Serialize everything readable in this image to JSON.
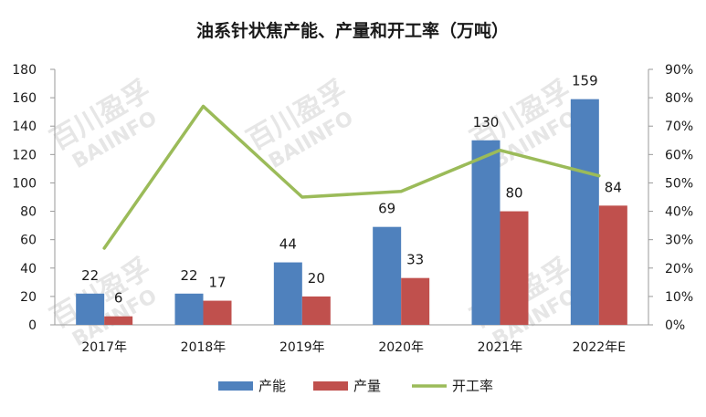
{
  "chart_data": {
    "type": "bar",
    "title": "油系针状焦产能、产量和开工率（万吨）",
    "categories": [
      "2017年",
      "2018年",
      "2019年",
      "2020年",
      "2021年",
      "2022年E"
    ],
    "series": [
      {
        "name": "产能",
        "kind": "bar",
        "axis": "left",
        "color": "#4f81bd",
        "values": [
          22,
          22,
          44,
          69,
          130,
          159
        ]
      },
      {
        "name": "产量",
        "kind": "bar",
        "axis": "left",
        "color": "#c0504d",
        "values": [
          6,
          17,
          20,
          33,
          80,
          84
        ]
      },
      {
        "name": "开工率",
        "kind": "line",
        "axis": "right",
        "color": "#9bbb59",
        "values": [
          0.27,
          0.77,
          0.45,
          0.47,
          0.615,
          0.525
        ]
      }
    ],
    "ylim": [
      0,
      180
    ],
    "y_ticks": [
      0,
      20,
      40,
      60,
      80,
      100,
      120,
      140,
      160,
      180
    ],
    "y2lim": [
      0,
      0.9
    ],
    "y2_ticks": [
      "0%",
      "10%",
      "20%",
      "30%",
      "40%",
      "50%",
      "60%",
      "70%",
      "80%",
      "90%"
    ],
    "legend_position": "bottom",
    "grid": false
  },
  "watermark": {
    "cn": "百川盈孚",
    "en": "BAIINFO"
  }
}
